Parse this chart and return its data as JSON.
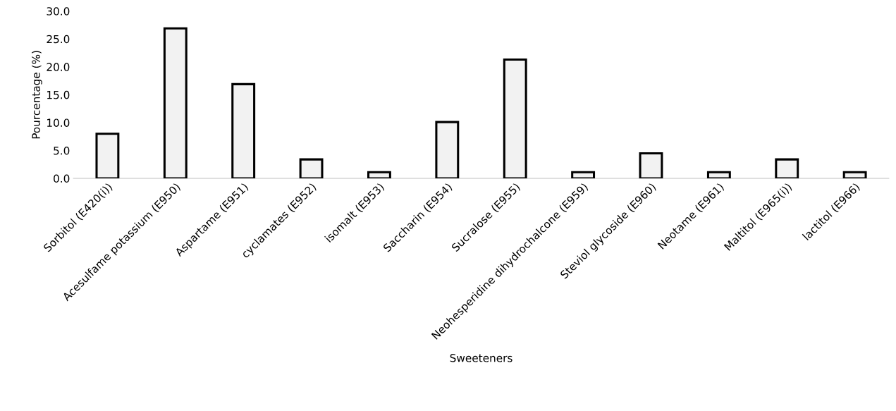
{
  "chart_data": {
    "type": "bar",
    "xlabel": "Sweeteners",
    "ylabel": "Pourcentage (%)",
    "categories": [
      "Sorbitol (E420(i))",
      "Acesulfame potassium (E950)",
      "Aspartame (E951)",
      "cyclamates (E952)",
      "isomalt (E953)",
      "Saccharin (E954)",
      "Sucralose (E955)",
      "Neohesperidine dihydrochalcone (E959)",
      "Steviol glycoside (E960)",
      "Neotame (E961)",
      "Maltitol (E965(i))",
      "lactitol (E966)"
    ],
    "values": [
      8.0,
      26.9,
      16.9,
      3.4,
      1.1,
      10.1,
      21.3,
      1.1,
      4.5,
      1.1,
      3.4,
      1.1
    ],
    "color": "#f2f2f2",
    "ylim": [
      0,
      30
    ],
    "yticks": [
      {
        "value": 0,
        "label": "0.0"
      },
      {
        "value": 5,
        "label": "5.0"
      },
      {
        "value": 10,
        "label": "10.0"
      },
      {
        "value": 15,
        "label": "15.0"
      },
      {
        "value": 20,
        "label": "20.0"
      },
      {
        "value": 25,
        "label": "25.0"
      },
      {
        "value": 30,
        "label": "30.0"
      }
    ],
    "grid": false
  }
}
